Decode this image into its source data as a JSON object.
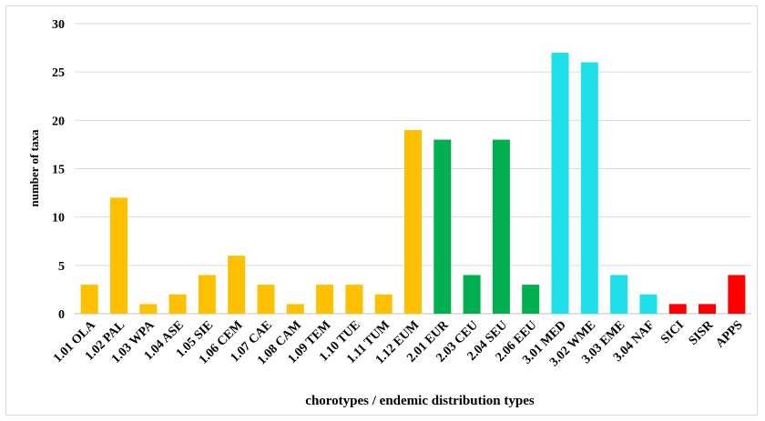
{
  "chart_data": {
    "type": "bar",
    "title": "",
    "xlabel": "chorotypes / endemic distribution  types",
    "ylabel": "number  of taxa",
    "ylim": [
      0,
      30
    ],
    "yticks": [
      0,
      5,
      10,
      15,
      20,
      25,
      30
    ],
    "grid": true,
    "legend": "none",
    "categories": [
      "1.01 OLA",
      "1.02 PAL",
      "1.03 WPA",
      "1.04 ASE",
      "1.05 SIE",
      "1.06 CEM",
      "1.07 CAE",
      "1.08 CAM",
      "1.09 TEM",
      "1.10 TUE",
      "1.11 TUM",
      "1.12 EUM",
      "2.01 EUR",
      "2.03 CEU",
      "2.04 SEU",
      "2.06 EEU",
      "3.01 MED",
      "3.02 WME",
      "3.03 EME",
      "3.04 NAF",
      "SICI",
      "SISR",
      "APPS"
    ],
    "values": [
      3,
      12,
      1,
      2,
      4,
      6,
      3,
      1,
      3,
      3,
      2,
      19,
      18,
      4,
      18,
      3,
      27,
      26,
      4,
      2,
      1,
      1,
      4
    ],
    "colors": [
      "#ffc000",
      "#ffc000",
      "#ffc000",
      "#ffc000",
      "#ffc000",
      "#ffc000",
      "#ffc000",
      "#ffc000",
      "#ffc000",
      "#ffc000",
      "#ffc000",
      "#ffc000",
      "#00b050",
      "#00b050",
      "#00b050",
      "#00b050",
      "#1fe0e8",
      "#1fe0e8",
      "#1fe0e8",
      "#1fe0e8",
      "#ff0000",
      "#ff0000",
      "#ff0000"
    ]
  }
}
